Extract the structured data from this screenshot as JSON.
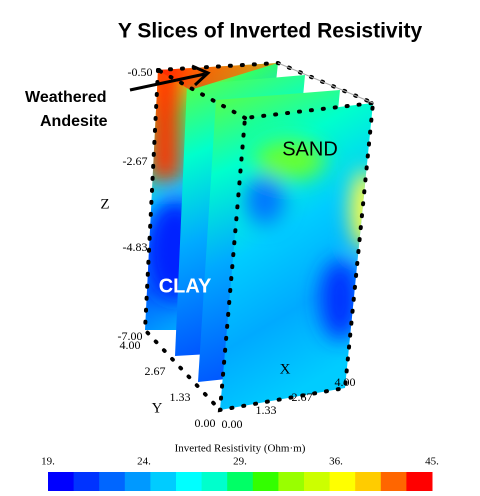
{
  "title": "Y Slices of Inverted Resistivity",
  "annotations": {
    "andesite": [
      "Weathered",
      "Andesite"
    ],
    "sand": "SAND",
    "clay": "CLAY"
  },
  "axes": {
    "z": {
      "label": "Z",
      "ticks": [
        "-0.50",
        "-2.67",
        "-4.83",
        "-7.00"
      ]
    },
    "y": {
      "label": "Y",
      "ticks": [
        "4.00",
        "2.67",
        "1.33",
        "0.00"
      ]
    },
    "x": {
      "label": "X",
      "ticks": [
        "0.00",
        "1.33",
        "2.67",
        "4.00"
      ]
    }
  },
  "colorbar": {
    "title": "Inverted Resistivity (Ohm·m)",
    "ticks": [
      "19.",
      "24.",
      "29.",
      "36.",
      "45."
    ],
    "colors": [
      "#0000ff",
      "#0033ff",
      "#0066ff",
      "#0099ff",
      "#00ccff",
      "#00ffff",
      "#00ffcc",
      "#00ff66",
      "#33ff00",
      "#99ff00",
      "#ccff00",
      "#ffff00",
      "#ffcc00",
      "#ff6600",
      "#ff0000"
    ]
  }
}
